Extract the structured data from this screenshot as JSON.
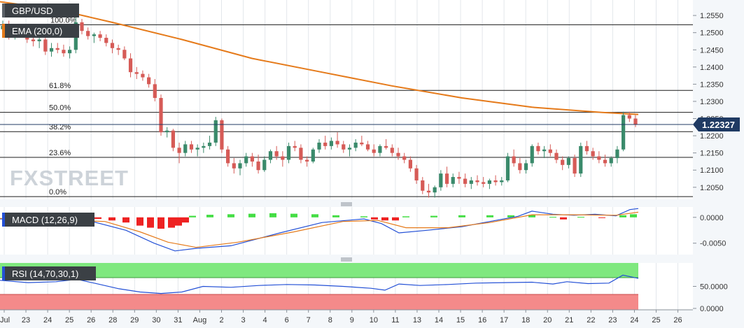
{
  "chart_data": [
    {
      "type": "candlestick",
      "panel": "price",
      "symbol": "GBP/USD",
      "indicator_label": "EMA (200,0)",
      "y_ticks": [
        "1.2550",
        "1.2500",
        "1.2450",
        "1.2400",
        "1.2350",
        "1.2300",
        "1.2250",
        "1.2200",
        "1.2150",
        "1.2100",
        "1.2050"
      ],
      "ylim": [
        1.2015,
        1.2595
      ],
      "last_price": "1.22327",
      "fib_levels": [
        {
          "label": "100.0%",
          "value": 1.2523
        },
        {
          "label": "61.8%",
          "value": 1.2332
        },
        {
          "label": "50.0%",
          "value": 1.2268
        },
        {
          "label": "38.2%",
          "value": 1.2212
        },
        {
          "label": "23.6%",
          "value": 1.2137
        },
        {
          "label": "0.0%",
          "value": 1.2023
        }
      ],
      "ema_200": [
        [
          0,
          1.259
        ],
        [
          80,
          1.2568
        ],
        [
          160,
          1.253
        ],
        [
          260,
          1.248
        ],
        [
          360,
          1.2425
        ],
        [
          460,
          1.2385
        ],
        [
          560,
          1.2345
        ],
        [
          660,
          1.231
        ],
        [
          760,
          1.2283
        ],
        [
          860,
          1.2268
        ],
        [
          912,
          1.2262
        ]
      ],
      "candles": [
        [
          1.251,
          1.2535,
          1.2495,
          1.252
        ],
        [
          1.252,
          1.2535,
          1.248,
          1.2495
        ],
        [
          1.2495,
          1.252,
          1.248,
          1.2505
        ],
        [
          1.2505,
          1.252,
          1.249,
          1.25
        ],
        [
          1.25,
          1.251,
          1.247,
          1.248
        ],
        [
          1.248,
          1.25,
          1.246,
          1.2475
        ],
        [
          1.2475,
          1.249,
          1.2455,
          1.248
        ],
        [
          1.248,
          1.249,
          1.2435,
          1.2445
        ],
        [
          1.2445,
          1.247,
          1.243,
          1.2455
        ],
        [
          1.2455,
          1.247,
          1.244,
          1.245
        ],
        [
          1.245,
          1.2465,
          1.243,
          1.244
        ],
        [
          1.244,
          1.246,
          1.2425,
          1.245
        ],
        [
          1.245,
          1.2545,
          1.244,
          1.253
        ],
        [
          1.253,
          1.254,
          1.2495,
          1.2505
        ],
        [
          1.2505,
          1.2515,
          1.248,
          1.249
        ],
        [
          1.249,
          1.25,
          1.247,
          1.2495
        ],
        [
          1.2495,
          1.2505,
          1.2475,
          1.2485
        ],
        [
          1.2485,
          1.2495,
          1.246,
          1.247
        ],
        [
          1.247,
          1.248,
          1.244,
          1.2455
        ],
        [
          1.2455,
          1.2465,
          1.2435,
          1.245
        ],
        [
          1.245,
          1.246,
          1.242,
          1.2425
        ],
        [
          1.2425,
          1.244,
          1.237,
          1.2385
        ],
        [
          1.2385,
          1.24,
          1.2365,
          1.238
        ],
        [
          1.238,
          1.239,
          1.236,
          1.237
        ],
        [
          1.237,
          1.238,
          1.234,
          1.235
        ],
        [
          1.235,
          1.2365,
          1.23,
          1.231
        ],
        [
          1.231,
          1.232,
          1.22,
          1.221
        ],
        [
          1.221,
          1.2225,
          1.2195,
          1.2215
        ],
        [
          1.2215,
          1.222,
          1.2155,
          1.2165
        ],
        [
          1.2165,
          1.218,
          1.212,
          1.215
        ],
        [
          1.215,
          1.2185,
          1.214,
          1.2175
        ],
        [
          1.2175,
          1.2185,
          1.215,
          1.216
        ],
        [
          1.216,
          1.2175,
          1.214,
          1.2165
        ],
        [
          1.2165,
          1.218,
          1.215,
          1.217
        ],
        [
          1.217,
          1.22,
          1.216,
          1.218
        ],
        [
          1.218,
          1.2255,
          1.217,
          1.2245
        ],
        [
          1.2245,
          1.225,
          1.215,
          1.216
        ],
        [
          1.216,
          1.217,
          1.211,
          1.212
        ],
        [
          1.212,
          1.2135,
          1.209,
          1.2105
        ],
        [
          1.2105,
          1.213,
          1.2085,
          1.212
        ],
        [
          1.212,
          1.215,
          1.211,
          1.214
        ],
        [
          1.214,
          1.215,
          1.211,
          1.2125
        ],
        [
          1.2125,
          1.2145,
          1.209,
          1.21
        ],
        [
          1.21,
          1.214,
          1.2095,
          1.213
        ],
        [
          1.213,
          1.216,
          1.212,
          1.2155
        ],
        [
          1.2155,
          1.217,
          1.213,
          1.214
        ],
        [
          1.214,
          1.2155,
          1.211,
          1.213
        ],
        [
          1.213,
          1.218,
          1.212,
          1.217
        ],
        [
          1.217,
          1.2185,
          1.2155,
          1.2165
        ],
        [
          1.2165,
          1.2175,
          1.212,
          1.213
        ],
        [
          1.213,
          1.214,
          1.211,
          1.2125
        ],
        [
          1.2125,
          1.2165,
          1.212,
          1.216
        ],
        [
          1.216,
          1.219,
          1.215,
          1.218
        ],
        [
          1.218,
          1.22,
          1.216,
          1.217
        ],
        [
          1.217,
          1.2195,
          1.216,
          1.2185
        ],
        [
          1.2185,
          1.221,
          1.2165,
          1.2175
        ],
        [
          1.2175,
          1.2185,
          1.215,
          1.216
        ],
        [
          1.216,
          1.2175,
          1.214,
          1.2165
        ],
        [
          1.2165,
          1.219,
          1.2155,
          1.218
        ],
        [
          1.218,
          1.22,
          1.217,
          1.2175
        ],
        [
          1.2175,
          1.2185,
          1.2155,
          1.216
        ],
        [
          1.216,
          1.2175,
          1.214,
          1.215
        ],
        [
          1.215,
          1.2175,
          1.214,
          1.217
        ],
        [
          1.217,
          1.219,
          1.216,
          1.2165
        ],
        [
          1.2165,
          1.2175,
          1.214,
          1.215
        ],
        [
          1.215,
          1.2165,
          1.213,
          1.214
        ],
        [
          1.214,
          1.215,
          1.212,
          1.213
        ],
        [
          1.213,
          1.214,
          1.2095,
          1.2105
        ],
        [
          1.2105,
          1.2115,
          1.206,
          1.207
        ],
        [
          1.207,
          1.208,
          1.203,
          1.204
        ],
        [
          1.204,
          1.206,
          1.202,
          1.2035
        ],
        [
          1.2035,
          1.2055,
          1.202,
          1.205
        ],
        [
          1.205,
          1.21,
          1.204,
          1.209
        ],
        [
          1.209,
          1.211,
          1.205,
          1.206
        ],
        [
          1.206,
          1.209,
          1.205,
          1.208
        ],
        [
          1.208,
          1.2095,
          1.206,
          1.2075
        ],
        [
          1.2075,
          1.209,
          1.205,
          1.206
        ],
        [
          1.206,
          1.208,
          1.2045,
          1.207
        ],
        [
          1.207,
          1.2085,
          1.2055,
          1.2065
        ],
        [
          1.2065,
          1.208,
          1.205,
          1.206
        ],
        [
          1.206,
          1.2075,
          1.2045,
          1.207
        ],
        [
          1.207,
          1.2085,
          1.2055,
          1.2065
        ],
        [
          1.2065,
          1.208,
          1.2055,
          1.207
        ],
        [
          1.207,
          1.215,
          1.2065,
          1.214
        ],
        [
          1.214,
          1.216,
          1.211,
          1.212
        ],
        [
          1.212,
          1.2135,
          1.209,
          1.21
        ],
        [
          1.21,
          1.213,
          1.209,
          1.212
        ],
        [
          1.212,
          1.2175,
          1.211,
          1.217
        ],
        [
          1.217,
          1.218,
          1.2145,
          1.2155
        ],
        [
          1.2155,
          1.217,
          1.2135,
          1.216
        ],
        [
          1.216,
          1.2175,
          1.214,
          1.215
        ],
        [
          1.215,
          1.216,
          1.212,
          1.213
        ],
        [
          1.213,
          1.214,
          1.21,
          1.2115
        ],
        [
          1.2115,
          1.214,
          1.2105,
          1.2135
        ],
        [
          1.2135,
          1.2145,
          1.208,
          1.209
        ],
        [
          1.209,
          1.218,
          1.208,
          1.217
        ],
        [
          1.217,
          1.2185,
          1.2145,
          1.2155
        ],
        [
          1.2155,
          1.2165,
          1.213,
          1.214
        ],
        [
          1.214,
          1.2155,
          1.212,
          1.213
        ],
        [
          1.213,
          1.2145,
          1.211,
          1.212
        ],
        [
          1.212,
          1.214,
          1.211,
          1.2135
        ],
        [
          1.2135,
          1.217,
          1.212,
          1.216
        ],
        [
          1.216,
          1.227,
          1.2155,
          1.226
        ],
        [
          1.226,
          1.227,
          1.224,
          1.225
        ],
        [
          1.225,
          1.226,
          1.2225,
          1.2233
        ]
      ]
    },
    {
      "type": "macd",
      "panel": "macd",
      "indicator_label": "MACD (12,26,9)",
      "y_ticks": [
        "0.0000",
        "-0.0050"
      ],
      "ylim": [
        -0.0072,
        0.002
      ],
      "macd_line": [
        [
          0,
          -0.0003
        ],
        [
          120,
          -0.0004
        ],
        [
          180,
          -0.0025
        ],
        [
          220,
          -0.005
        ],
        [
          250,
          -0.0065
        ],
        [
          280,
          -0.006
        ],
        [
          330,
          -0.0055
        ],
        [
          400,
          -0.003
        ],
        [
          460,
          -0.001
        ],
        [
          520,
          -0.0003
        ],
        [
          545,
          -0.0012
        ],
        [
          570,
          -0.003
        ],
        [
          610,
          -0.0025
        ],
        [
          660,
          -0.0018
        ],
        [
          700,
          -0.0008
        ],
        [
          740,
          0.0002
        ],
        [
          760,
          0.0012
        ],
        [
          790,
          0.0006
        ],
        [
          820,
          0.0004
        ],
        [
          850,
          0.0006
        ],
        [
          880,
          0.0003
        ],
        [
          900,
          0.0015
        ],
        [
          912,
          0.0017
        ]
      ],
      "signal_line": [
        [
          0,
          -0.0002
        ],
        [
          150,
          -0.0008
        ],
        [
          200,
          -0.0028
        ],
        [
          240,
          -0.0048
        ],
        [
          280,
          -0.0058
        ],
        [
          340,
          -0.0048
        ],
        [
          420,
          -0.0028
        ],
        [
          490,
          -0.0008
        ],
        [
          540,
          -0.0006
        ],
        [
          580,
          -0.002
        ],
        [
          640,
          -0.002
        ],
        [
          700,
          -0.001
        ],
        [
          760,
          0.0005
        ],
        [
          820,
          0.0005
        ],
        [
          880,
          0.0004
        ],
        [
          912,
          0.001
        ]
      ],
      "histogram": [
        [
          140,
          -0.0003
        ],
        [
          160,
          -0.0006
        ],
        [
          180,
          -0.001
        ],
        [
          200,
          -0.0016
        ],
        [
          215,
          -0.002
        ],
        [
          230,
          -0.0022
        ],
        [
          245,
          -0.002
        ],
        [
          255,
          -0.0016
        ],
        [
          265,
          -0.001
        ],
        [
          275,
          0.0003
        ],
        [
          300,
          0.0005
        ],
        [
          330,
          0.0006
        ],
        [
          360,
          0.0007
        ],
        [
          390,
          0.0008
        ],
        [
          420,
          0.0007
        ],
        [
          450,
          0.0006
        ],
        [
          480,
          0.0004
        ],
        [
          520,
          0.0002
        ],
        [
          535,
          -0.0004
        ],
        [
          550,
          -0.0006
        ],
        [
          565,
          -0.0006
        ],
        [
          580,
          0.0002
        ],
        [
          620,
          0.0003
        ],
        [
          660,
          0.0004
        ],
        [
          700,
          0.0004
        ],
        [
          730,
          0.0004
        ],
        [
          760,
          0.0005
        ],
        [
          790,
          0.0001
        ],
        [
          805,
          -0.0004
        ],
        [
          830,
          0.0001
        ],
        [
          860,
          -0.0001
        ],
        [
          890,
          0.0004
        ],
        [
          905,
          0.0006
        ]
      ]
    },
    {
      "type": "line",
      "panel": "rsi",
      "indicator_label": "RSI (14,70,30,1)",
      "y_ticks": [
        "50.0000",
        "0.0000"
      ],
      "ylim": [
        0,
        100
      ],
      "rsi": [
        [
          0,
          63
        ],
        [
          40,
          58
        ],
        [
          80,
          60
        ],
        [
          110,
          65
        ],
        [
          140,
          55
        ],
        [
          170,
          45
        ],
        [
          200,
          38
        ],
        [
          230,
          35
        ],
        [
          260,
          38
        ],
        [
          290,
          50
        ],
        [
          330,
          48
        ],
        [
          370,
          52
        ],
        [
          410,
          54
        ],
        [
          450,
          53
        ],
        [
          490,
          50
        ],
        [
          530,
          46
        ],
        [
          550,
          42
        ],
        [
          570,
          55
        ],
        [
          600,
          52
        ],
        [
          640,
          54
        ],
        [
          680,
          57
        ],
        [
          720,
          58
        ],
        [
          760,
          59
        ],
        [
          790,
          55
        ],
        [
          810,
          60
        ],
        [
          840,
          56
        ],
        [
          870,
          57
        ],
        [
          890,
          74
        ],
        [
          912,
          67
        ]
      ]
    }
  ],
  "x_axis": {
    "labels": [
      "Jul",
      "23",
      "24",
      "25",
      "26",
      "28",
      "29",
      "30",
      "31",
      "Aug",
      "2",
      "3",
      "4",
      "6",
      "7",
      "8",
      "9",
      "10",
      "11",
      "13",
      "14",
      "15",
      "16",
      "17",
      "18",
      "20",
      "21",
      "22",
      "23",
      "24",
      "25",
      "26"
    ]
  },
  "branding": {
    "logo": "FXSTREET"
  },
  "colors": {
    "bull": "#3a8a6b",
    "bear": "#d65b57",
    "ema": "#e57a1a",
    "macd_line": "#2350d6",
    "signal_line": "#e57a1a",
    "hist_pos": "#44dd44",
    "hist_neg": "#ee2222",
    "rsi_line": "#2350d6",
    "rsi_over": "#7fe87f",
    "rsi_under": "#f48a8a",
    "price_tag": "#1f3a63"
  }
}
